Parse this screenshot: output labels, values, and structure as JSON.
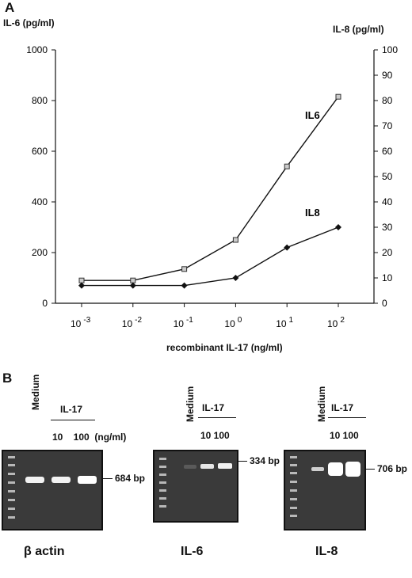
{
  "panel_a": {
    "letter": "A",
    "left_axis_title": "IL-6 (pg/ml)",
    "right_axis_title": "IL-8 (pg/ml)",
    "xlabel": "recombinant  IL-17 (ng/ml)"
  },
  "chart_data": {
    "type": "line",
    "x": [
      0.001,
      0.01,
      0.1,
      1,
      10,
      100
    ],
    "x_scale": "log",
    "xticks": [
      0.001,
      0.01,
      0.1,
      1,
      10,
      100
    ],
    "xtick_labels": [
      {
        "base": "10",
        "exp": "-3"
      },
      {
        "base": "10",
        "exp": "-2"
      },
      {
        "base": "10",
        "exp": "-1"
      },
      {
        "base": "10",
        "exp": "0"
      },
      {
        "base": "10",
        "exp": "1"
      },
      {
        "base": "10",
        "exp": "2"
      }
    ],
    "series": [
      {
        "name": "IL6",
        "axis": "left",
        "marker": "square",
        "values": [
          90,
          90,
          135,
          250,
          540,
          815
        ]
      },
      {
        "name": "IL8",
        "axis": "right",
        "marker": "diamond",
        "values": [
          7,
          7,
          7,
          10,
          22,
          30
        ]
      }
    ],
    "ylim_left": [
      0,
      1000
    ],
    "yticks_left": [
      0,
      200,
      400,
      600,
      800,
      1000
    ],
    "ylim_right": [
      0,
      100
    ],
    "yticks_right": [
      0,
      10,
      20,
      30,
      40,
      50,
      60,
      70,
      80,
      90,
      100
    ],
    "ylabel_left": "IL-6 (pg/ml)",
    "ylabel_right": "IL-8 (pg/ml)",
    "xlabel": "recombinant  IL-17 (ng/ml)",
    "grid": false
  },
  "panel_b": {
    "letter": "B",
    "medium": "Medium",
    "il17": "IL-17",
    "beta_actin": {
      "doses": "10    100  (ng/ml)",
      "bp": "684 bp",
      "caption": "β actin"
    },
    "il6": {
      "doses": "10 100",
      "bp": "334 bp",
      "caption": "IL-6"
    },
    "il8": {
      "doses": "10 100",
      "bp": "706 bp",
      "caption": "IL-8"
    }
  }
}
